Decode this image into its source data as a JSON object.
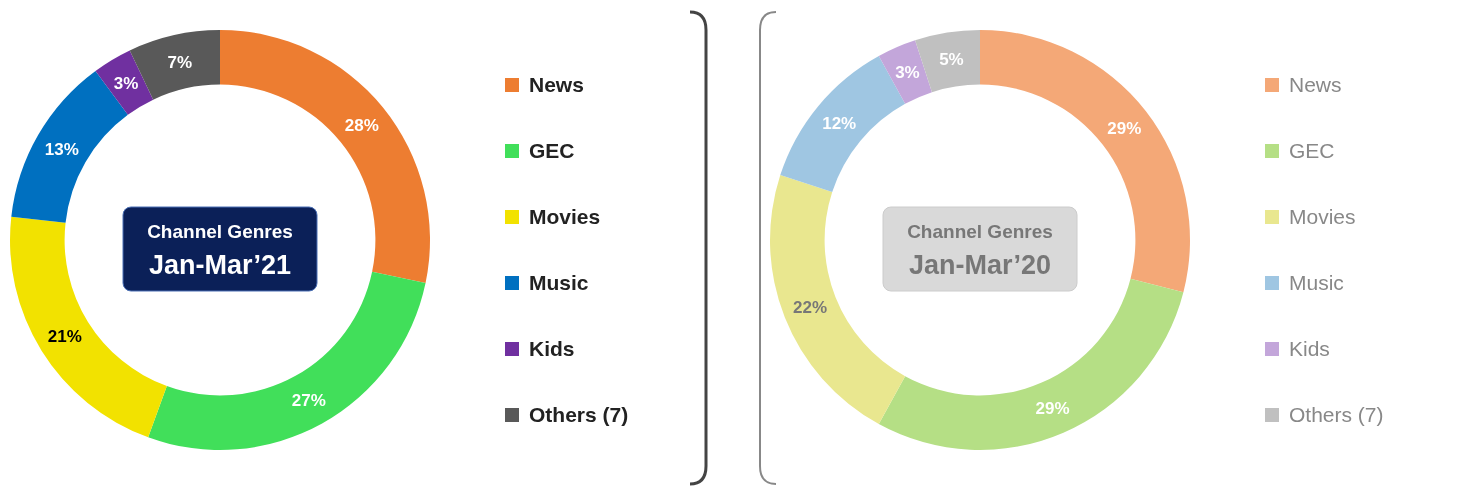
{
  "chart_data": [
    {
      "type": "donut",
      "title": "Channel Genres",
      "subtitle": "Jan-Mar’21",
      "categories": [
        "News",
        "GEC",
        "Movies",
        "Music",
        "Kids",
        "Others (7)"
      ],
      "values": [
        28,
        27,
        21,
        13,
        3,
        7
      ],
      "colors": [
        "#ed7d31",
        "#41df5a",
        "#f2e200",
        "#0070c0",
        "#7030a0",
        "#595959"
      ],
      "value_labels": [
        "28%",
        "27%",
        "21%",
        "13%",
        "3%",
        "7%"
      ],
      "legend": "right"
    },
    {
      "type": "donut",
      "title": "Channel Genres",
      "subtitle": "Jan-Mar’20",
      "categories": [
        "News",
        "GEC",
        "Movies",
        "Music",
        "Kids",
        "Others (7)"
      ],
      "values": [
        29,
        29,
        22,
        12,
        3,
        5
      ],
      "colors": [
        "#f4a877",
        "#b5df85",
        "#e9e78f",
        "#9fc6e2",
        "#c3a6da",
        "#c0c0c0"
      ],
      "value_labels": [
        "29%",
        "29%",
        "22%",
        "12%",
        "3%",
        "5%"
      ],
      "legend": "right"
    }
  ]
}
